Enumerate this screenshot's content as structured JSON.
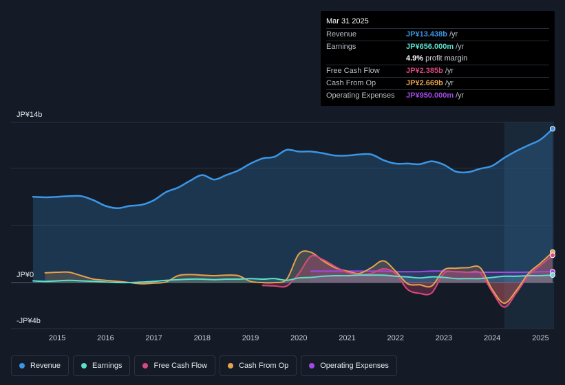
{
  "colors": {
    "revenue": "#3b96e6",
    "earnings": "#5ce0cc",
    "free_cash_flow": "#d9497e",
    "cash_from_op": "#e8a24e",
    "operating_expenses": "#a24ae6",
    "background": "#151b26"
  },
  "tooltip": {
    "date": "Mar 31 2025",
    "rows": [
      {
        "label": "Revenue",
        "value": "JP¥13.438b",
        "unit": "/yr"
      },
      {
        "label": "Earnings",
        "value": "JP¥656.000m",
        "unit": "/yr"
      },
      {
        "label": "",
        "value": "4.9%",
        "unit": "profit margin"
      },
      {
        "label": "Free Cash Flow",
        "value": "JP¥2.385b",
        "unit": "/yr"
      },
      {
        "label": "Cash From Op",
        "value": "JP¥2.669b",
        "unit": "/yr"
      },
      {
        "label": "Operating Expenses",
        "value": "JP¥950.000m",
        "unit": "/yr"
      }
    ]
  },
  "legend": [
    {
      "label": "Revenue",
      "icon": "dot"
    },
    {
      "label": "Earnings",
      "icon": "dot"
    },
    {
      "label": "Free Cash Flow",
      "icon": "dot"
    },
    {
      "label": "Cash From Op",
      "icon": "dot"
    },
    {
      "label": "Operating Expenses",
      "icon": "dot"
    }
  ],
  "chart_data": {
    "type": "area",
    "title": "",
    "xlabel": "",
    "ylabel": "",
    "ylim": [
      -4,
      14
    ],
    "xlim": [
      2014.6,
      2025.3
    ],
    "y_tick_labels": [
      {
        "value": 14,
        "label": "JP¥14b"
      },
      {
        "value": 0,
        "label": "JP¥0"
      },
      {
        "value": -4,
        "label": "-JP¥4b"
      }
    ],
    "x_ticks": [
      2015,
      2016,
      2017,
      2018,
      2019,
      2020,
      2021,
      2022,
      2023,
      2024,
      2025
    ],
    "x_tick_labels": [
      "2015",
      "2016",
      "2017",
      "2018",
      "2019",
      "2020",
      "2021",
      "2022",
      "2023",
      "2024",
      "2025"
    ],
    "forecast_start": 2024.25,
    "series": [
      {
        "name": "Revenue",
        "key": "revenue",
        "x": [
          2014.5,
          2014.75,
          2015.0,
          2015.25,
          2015.5,
          2015.75,
          2016.0,
          2016.25,
          2016.5,
          2016.75,
          2017.0,
          2017.25,
          2017.5,
          2017.75,
          2018.0,
          2018.25,
          2018.5,
          2018.75,
          2019.0,
          2019.25,
          2019.5,
          2019.75,
          2020.0,
          2020.25,
          2020.5,
          2020.75,
          2021.0,
          2021.25,
          2021.5,
          2021.75,
          2022.0,
          2022.25,
          2022.5,
          2022.75,
          2023.0,
          2023.25,
          2023.5,
          2023.75,
          2024.0,
          2024.25,
          2024.5,
          2024.75,
          2025.0,
          2025.25
        ],
        "values": [
          7.5,
          7.45,
          7.5,
          7.55,
          7.55,
          7.2,
          6.7,
          6.5,
          6.7,
          6.8,
          7.2,
          7.9,
          8.3,
          8.9,
          9.4,
          9.0,
          9.4,
          9.8,
          10.4,
          10.85,
          11.0,
          11.6,
          11.45,
          11.45,
          11.3,
          11.1,
          11.1,
          11.2,
          11.2,
          10.7,
          10.4,
          10.4,
          10.35,
          10.6,
          10.3,
          9.7,
          9.65,
          9.95,
          10.2,
          10.9,
          11.5,
          12.0,
          12.5,
          13.438
        ]
      },
      {
        "name": "Earnings",
        "key": "earnings",
        "x": [
          2014.5,
          2014.75,
          2015.0,
          2015.25,
          2015.5,
          2015.75,
          2016.0,
          2016.25,
          2016.5,
          2016.75,
          2017.0,
          2017.25,
          2017.5,
          2017.75,
          2018.0,
          2018.25,
          2018.5,
          2018.75,
          2019.0,
          2019.25,
          2019.5,
          2019.75,
          2020.0,
          2020.25,
          2020.5,
          2020.75,
          2021.0,
          2021.25,
          2021.5,
          2021.75,
          2022.0,
          2022.25,
          2022.5,
          2022.75,
          2023.0,
          2023.25,
          2023.5,
          2023.75,
          2024.0,
          2024.25,
          2024.5,
          2024.75,
          2025.0,
          2025.25
        ],
        "values": [
          0.15,
          0.1,
          0.15,
          0.2,
          0.15,
          0.1,
          0.05,
          0.0,
          0.0,
          0.05,
          0.1,
          0.2,
          0.25,
          0.3,
          0.3,
          0.25,
          0.3,
          0.3,
          0.35,
          0.3,
          0.35,
          0.2,
          0.4,
          0.45,
          0.55,
          0.6,
          0.6,
          0.65,
          0.65,
          0.65,
          0.55,
          0.5,
          0.4,
          0.5,
          0.45,
          0.35,
          0.35,
          0.35,
          0.45,
          0.55,
          0.55,
          0.6,
          0.6,
          0.656
        ]
      },
      {
        "name": "Free Cash Flow",
        "key": "free_cash_flow",
        "x": [
          2019.25,
          2019.5,
          2019.75,
          2020.0,
          2020.25,
          2020.5,
          2020.75,
          2021.0,
          2021.25,
          2021.5,
          2021.75,
          2022.0,
          2022.25,
          2022.5,
          2022.75,
          2023.0,
          2023.25,
          2023.5,
          2023.75,
          2024.0,
          2024.25,
          2024.5,
          2024.75,
          2025.0,
          2025.25
        ],
        "values": [
          -0.25,
          -0.3,
          -0.3,
          0.8,
          2.3,
          2.0,
          1.4,
          0.9,
          0.7,
          0.8,
          1.2,
          0.8,
          -0.6,
          -0.95,
          -0.9,
          0.8,
          0.95,
          0.9,
          0.85,
          -0.8,
          -2.15,
          -0.9,
          0.6,
          1.5,
          2.385
        ]
      },
      {
        "name": "Cash From Op",
        "key": "cash_from_op",
        "x": [
          2014.75,
          2015.0,
          2015.25,
          2015.5,
          2015.75,
          2016.0,
          2016.25,
          2016.5,
          2016.75,
          2017.0,
          2017.25,
          2017.5,
          2017.75,
          2018.0,
          2018.25,
          2018.5,
          2018.75,
          2019.0,
          2019.25,
          2019.5,
          2019.75,
          2020.0,
          2020.25,
          2020.5,
          2020.75,
          2021.0,
          2021.25,
          2021.5,
          2021.75,
          2022.0,
          2022.25,
          2022.5,
          2022.75,
          2023.0,
          2023.25,
          2023.5,
          2023.75,
          2024.0,
          2024.25,
          2024.5,
          2024.75,
          2025.0,
          2025.25
        ],
        "values": [
          0.85,
          0.9,
          0.9,
          0.6,
          0.3,
          0.2,
          0.1,
          0.0,
          -0.1,
          -0.05,
          0.05,
          0.6,
          0.7,
          0.65,
          0.6,
          0.65,
          0.6,
          0.1,
          0.0,
          0.0,
          0.3,
          2.5,
          2.65,
          1.9,
          1.3,
          1.0,
          0.8,
          1.3,
          1.9,
          1.0,
          -0.1,
          -0.2,
          -0.3,
          1.1,
          1.25,
          1.3,
          1.3,
          -0.6,
          -1.8,
          -0.7,
          0.8,
          1.7,
          2.669
        ]
      },
      {
        "name": "Operating Expenses",
        "key": "operating_expenses",
        "x": [
          2020.25,
          2020.5,
          2020.75,
          2021.0,
          2021.25,
          2021.5,
          2021.75,
          2022.0,
          2022.25,
          2022.5,
          2022.75,
          2023.0,
          2023.25,
          2023.5,
          2023.75,
          2024.0,
          2024.25,
          2024.5,
          2024.75,
          2025.0,
          2025.25
        ],
        "values": [
          1.0,
          1.0,
          1.0,
          1.0,
          1.0,
          1.0,
          1.0,
          0.95,
          0.95,
          0.95,
          1.0,
          1.0,
          0.95,
          0.9,
          0.9,
          0.9,
          0.9,
          0.9,
          0.92,
          0.95,
          0.95
        ]
      }
    ]
  }
}
